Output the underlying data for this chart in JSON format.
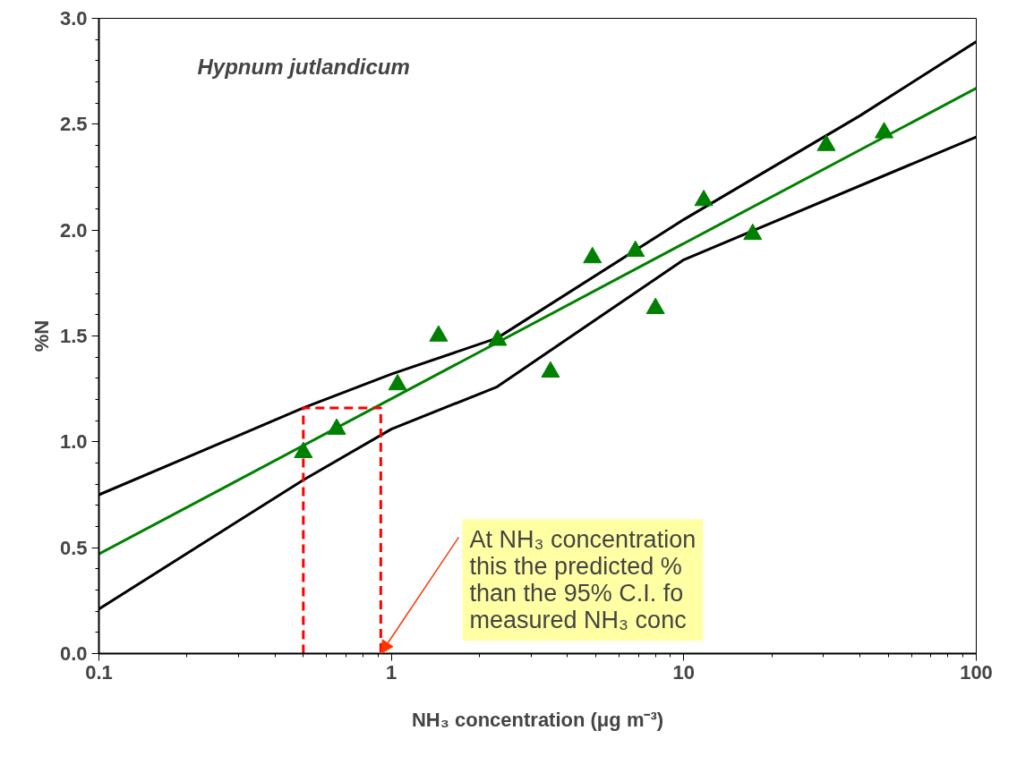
{
  "chart_data": {
    "type": "scatter",
    "title": "Hypnum jutlandicum",
    "xlabel": "NH₃ concentration (μg m⁻³)",
    "ylabel": "%N",
    "log": "x",
    "grid": false,
    "xlim": [
      0.1,
      100
    ],
    "xticks": [
      0.1,
      1,
      10,
      100
    ],
    "ylim": [
      0,
      3
    ],
    "yticks": [
      {
        "value": 0,
        "label": "0.0"
      },
      {
        "value": 0.5,
        "label": "0.5"
      },
      {
        "value": 1,
        "label": "1.0"
      },
      {
        "value": 1.5,
        "label": "1.5"
      },
      {
        "value": 2,
        "label": "2.0"
      },
      {
        "value": 2.5,
        "label": "2.5"
      },
      {
        "value": 3,
        "label": "3.0"
      }
    ],
    "series": [
      {
        "type": "line",
        "color": "#000000",
        "line_style": "solid",
        "marker": "none",
        "x": [
          0.1,
          0.5,
          1,
          2.3,
          10,
          40,
          100
        ],
        "values": [
          0.75,
          1.16,
          1.32,
          1.49,
          2.05,
          2.54,
          2.89
        ]
      },
      {
        "type": "line",
        "color": "#000000",
        "line_style": "solid",
        "marker": "none",
        "x": [
          0.1,
          0.5,
          1,
          2.3,
          10,
          100
        ],
        "values": [
          0.21,
          0.82,
          1.06,
          1.26,
          1.86,
          2.44
        ]
      },
      {
        "type": "line",
        "color": "#008000",
        "line_style": "solid",
        "marker": "none",
        "x": [
          0.1,
          100
        ],
        "values": [
          0.47,
          2.67
        ]
      },
      {
        "type": "line",
        "color": "#ff0000",
        "line_style": "dashed",
        "marker": "none",
        "x": [
          0.5,
          0.5,
          0.92,
          0.92
        ],
        "values": [
          0,
          1.16,
          1.16,
          0
        ]
      },
      {
        "color": "#008000",
        "marker": "triangle",
        "x": [
          0.5,
          0.65,
          1.05,
          1.45,
          2.31,
          3.5,
          4.87,
          6.83,
          8.0,
          11.7,
          17.2,
          30.7,
          48.4
        ],
        "values": [
          0.95,
          1.06,
          1.27,
          1.5,
          1.48,
          1.33,
          1.87,
          1.9,
          1.63,
          2.14,
          1.98,
          2.4,
          2.46
        ]
      }
    ],
    "annotations": [
      {
        "text": "At NH₃ concentration\nthis the predicted %\nthan the 95% C.I. fo\nmeasured NH₃ conc",
        "x": 0.92,
        "y": 0
      }
    ]
  }
}
